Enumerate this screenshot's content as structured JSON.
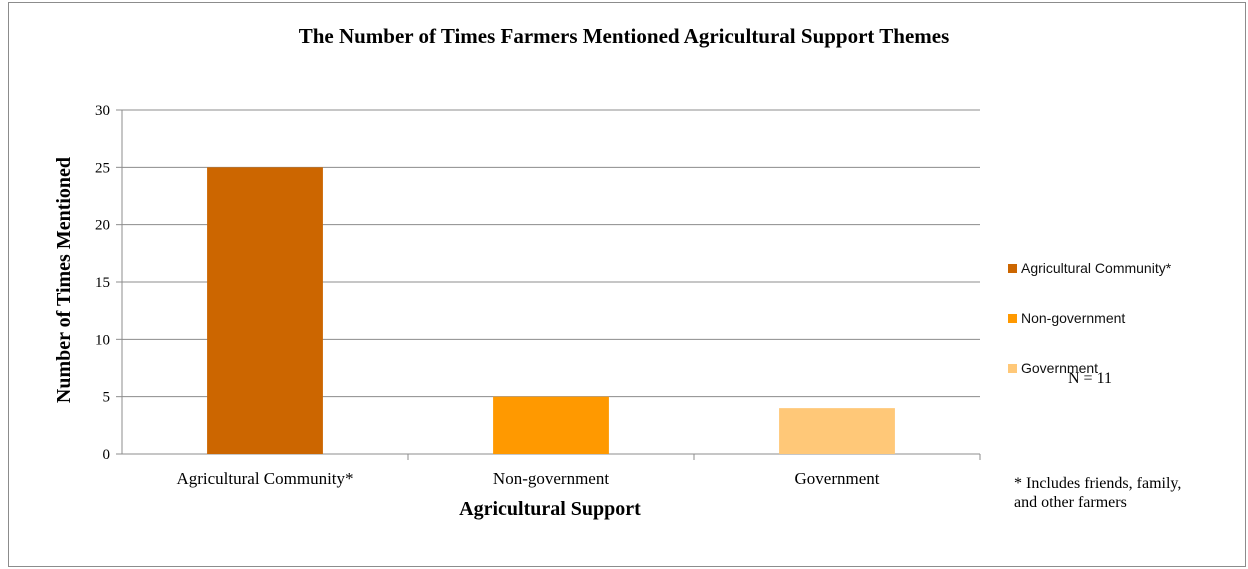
{
  "chart_data": {
    "type": "bar",
    "title": "The Number of Times Farmers Mentioned Agricultural Support Themes",
    "xlabel": "Agricultural Support",
    "ylabel": "Number of Times Mentioned",
    "categories": [
      "Agricultural Community*",
      "Non-government",
      "Government"
    ],
    "values": [
      25,
      5,
      4
    ],
    "colors": [
      "#cc6600",
      "#ff9900",
      "#ffc878"
    ],
    "ylim": [
      0,
      30
    ],
    "yticks": [
      "0",
      "5",
      "10",
      "15",
      "20",
      "25",
      "30"
    ],
    "grid": true,
    "legend": {
      "position": "right",
      "entries": [
        "Agricultural Community*",
        "Non-government",
        "Government"
      ]
    },
    "annotations": {
      "n_note": "N = 11",
      "footnote": "* Includes friends, family, and other farmers"
    }
  }
}
